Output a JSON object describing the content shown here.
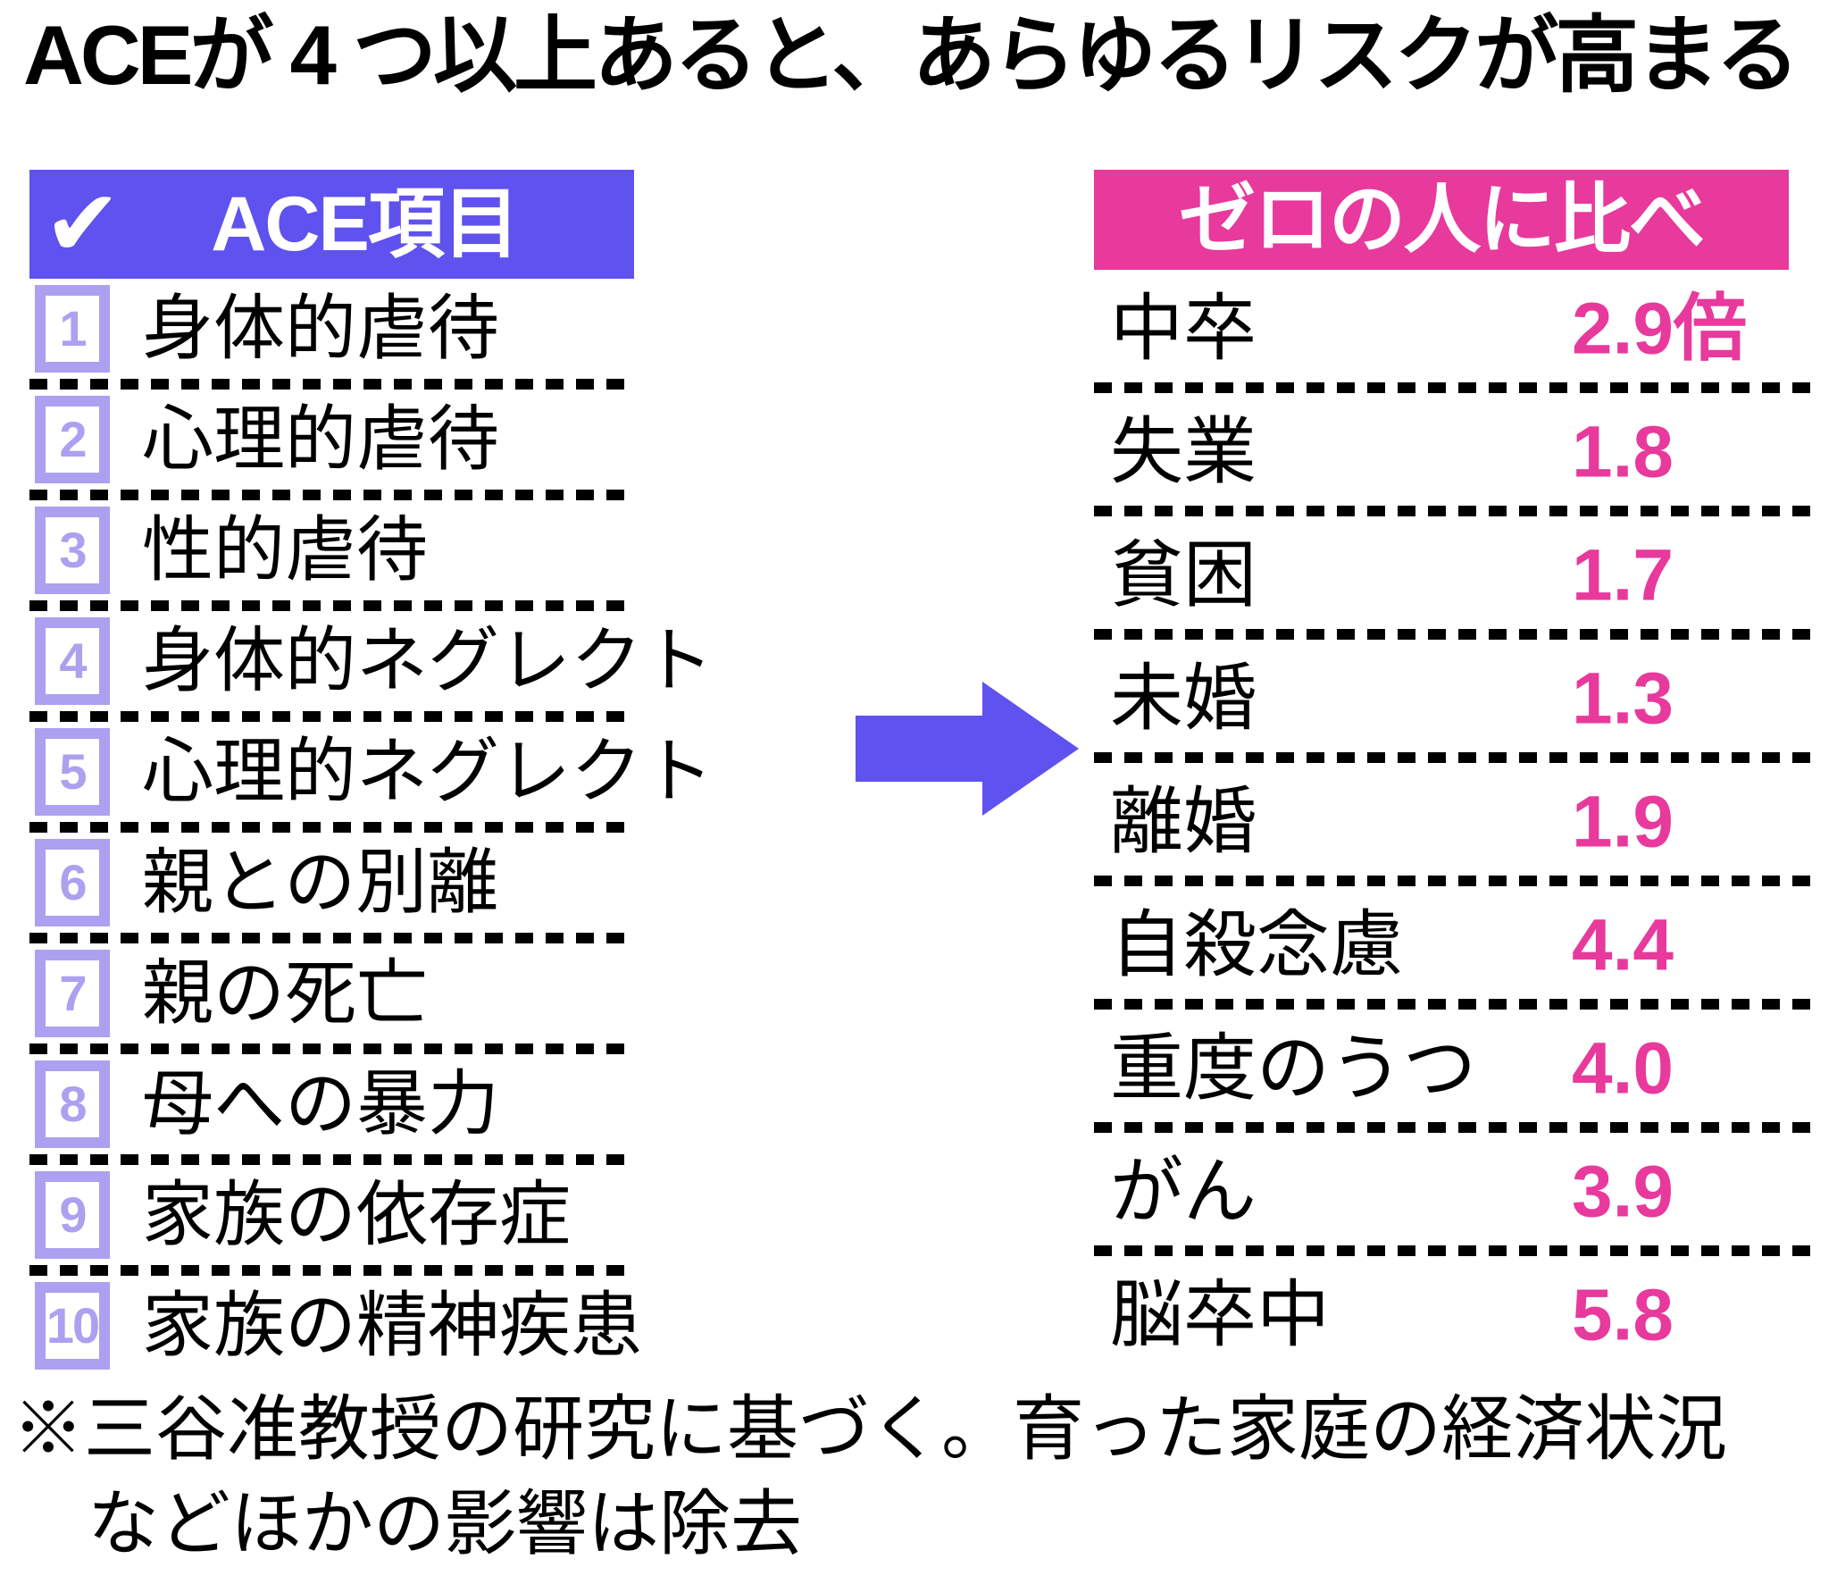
{
  "title": "ACEが 4 つ以上あると、あらゆるリスクが高まる",
  "colors": {
    "accent_purple": "#5F52EE",
    "accent_lavender": "#ACA0F0",
    "accent_pink": "#E8399C",
    "text": "#000000",
    "background": "#FFFFFF"
  },
  "left_panel": {
    "check_glyph": "✔",
    "header": "ACE項目",
    "items": [
      {
        "num": "1",
        "label": "身体的虐待"
      },
      {
        "num": "2",
        "label": "心理的虐待"
      },
      {
        "num": "3",
        "label": "性的虐待"
      },
      {
        "num": "4",
        "label": "身体的ネグレクト"
      },
      {
        "num": "5",
        "label": "心理的ネグレクト"
      },
      {
        "num": "6",
        "label": "親との別離"
      },
      {
        "num": "7",
        "label": "親の死亡"
      },
      {
        "num": "8",
        "label": "母への暴力"
      },
      {
        "num": "9",
        "label": "家族の依存症"
      },
      {
        "num": "10",
        "label": "家族の精神疾患"
      }
    ]
  },
  "right_panel": {
    "header": "ゼロの人に比べ",
    "rows": [
      {
        "label": "中卒",
        "value": "2.9倍"
      },
      {
        "label": "失業",
        "value": "1.8"
      },
      {
        "label": "貧困",
        "value": "1.7"
      },
      {
        "label": "未婚",
        "value": "1.3"
      },
      {
        "label": "離婚",
        "value": "1.9"
      },
      {
        "label": "自殺念慮",
        "value": "4.4"
      },
      {
        "label": "重度のうつ",
        "value": "4.0"
      },
      {
        "label": "がん",
        "value": "3.9"
      },
      {
        "label": "脳卒中",
        "value": "5.8"
      }
    ]
  },
  "footnote": {
    "line1": "※三谷准教授の研究に基づく。育った家庭の経済状況",
    "line2": "などほかの影響は除去"
  },
  "chart_data": {
    "type": "table",
    "title": "ACEが 4 つ以上あると、あらゆるリスクが高まる",
    "ace_items_header": "ACE項目",
    "ace_items": [
      "身体的虐待",
      "心理的虐待",
      "性的虐待",
      "身体的ネグレクト",
      "心理的ネグレクト",
      "親との別離",
      "親の死亡",
      "母への暴力",
      "家族の依存症",
      "家族の精神疾患"
    ],
    "comparison_header": "ゼロの人に比べ",
    "comparison_unit": "倍",
    "rows": [
      {
        "label": "中卒",
        "ratio": 2.9
      },
      {
        "label": "失業",
        "ratio": 1.8
      },
      {
        "label": "貧困",
        "ratio": 1.7
      },
      {
        "label": "未婚",
        "ratio": 1.3
      },
      {
        "label": "離婚",
        "ratio": 1.9
      },
      {
        "label": "自殺念慮",
        "ratio": 4.4
      },
      {
        "label": "重度のうつ",
        "ratio": 4.0
      },
      {
        "label": "がん",
        "ratio": 3.9
      },
      {
        "label": "脳卒中",
        "ratio": 5.8
      }
    ],
    "footnote": "※三谷准教授の研究に基づく。育った家庭の経済状況などほかの影響は除去"
  }
}
